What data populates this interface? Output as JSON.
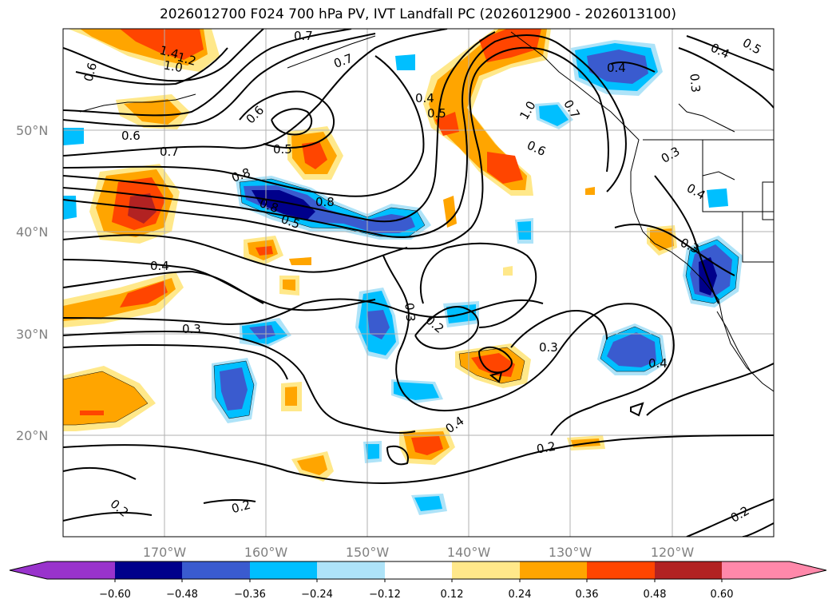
{
  "title": "2026012700 F024 700 hPa PV, IVT Landfall PC (2026012900 - 2026013100)",
  "map": {
    "lat_labels": [
      "50°N",
      "40°N",
      "30°N",
      "20°N"
    ],
    "lon_labels": [
      "170°W",
      "160°W",
      "150°W",
      "140°W",
      "130°W",
      "120°W"
    ],
    "contour_labels": [
      "0.6",
      "1.4",
      "1.2",
      "1.0",
      "0.4",
      "0.8",
      "0.7",
      "0.6",
      "0.7",
      "0.6",
      "0.5",
      "0.4",
      "0.5",
      "0.7",
      "1.0",
      "0.6",
      "0.4",
      "0.3",
      "0.5",
      "0.4",
      "0.3",
      "0.7",
      "0.8",
      "0.8",
      "0.5",
      "0.4",
      "0.3",
      "0.2",
      "0.3",
      "0.3",
      "0.4",
      "0.4",
      "0.3",
      "0.2",
      "0.2",
      "0.2",
      "0.2"
    ]
  },
  "colorbar": {
    "colors": [
      "#9933cc",
      "#00008b",
      "#3a5bcf",
      "#00bfff",
      "#aee3f8",
      "#ffffff",
      "#ffe88a",
      "#ffa500",
      "#ff4500",
      "#b22222",
      "#ff88aa"
    ],
    "tick_labels": [
      "−0.60",
      "−0.48",
      "−0.36",
      "−0.24",
      "−0.12",
      "0.12",
      "0.24",
      "0.36",
      "0.48",
      "0.60"
    ]
  }
}
